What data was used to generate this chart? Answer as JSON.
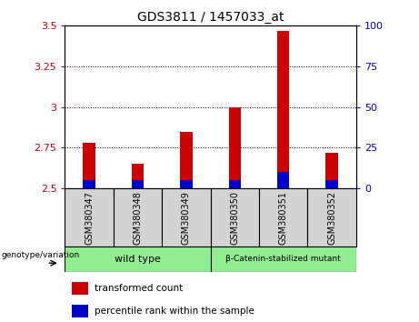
{
  "title": "GDS3811 / 1457033_at",
  "samples": [
    "GSM380347",
    "GSM380348",
    "GSM380349",
    "GSM380350",
    "GSM380351",
    "GSM380352"
  ],
  "transformed_counts": [
    2.78,
    2.65,
    2.85,
    3.0,
    3.47,
    2.72
  ],
  "percentile_ranks": [
    5,
    5,
    5,
    5,
    10,
    5
  ],
  "ylim_left": [
    2.5,
    3.5
  ],
  "ylim_right": [
    0,
    100
  ],
  "yticks_left": [
    2.5,
    2.75,
    3.0,
    3.25,
    3.5
  ],
  "yticks_right": [
    0,
    25,
    50,
    75,
    100
  ],
  "ytick_labels_left": [
    "2.5",
    "2.75",
    "3",
    "3.25",
    "3.5"
  ],
  "ytick_labels_right": [
    "0",
    "25",
    "50",
    "75",
    "100"
  ],
  "groups": [
    {
      "label": "wild type",
      "start": 0,
      "end": 3
    },
    {
      "label": "β-Catenin-stabilized mutant",
      "start": 3,
      "end": 6
    }
  ],
  "genotype_label": "genotype/variation",
  "legend_items": [
    {
      "label": "transformed count",
      "color": "#CC0000"
    },
    {
      "label": "percentile rank within the sample",
      "color": "#0000CC"
    }
  ],
  "bar_width": 0.25,
  "red_color": "#CC0000",
  "blue_color": "#0000CC",
  "bar_bottom": 2.5,
  "tick_color_left": "#CC0000",
  "tick_color_right": "#0000CC",
  "sample_area_color": "#D3D3D3",
  "group_area_color": "#90EE90",
  "bg_color": "#FFFFFF"
}
